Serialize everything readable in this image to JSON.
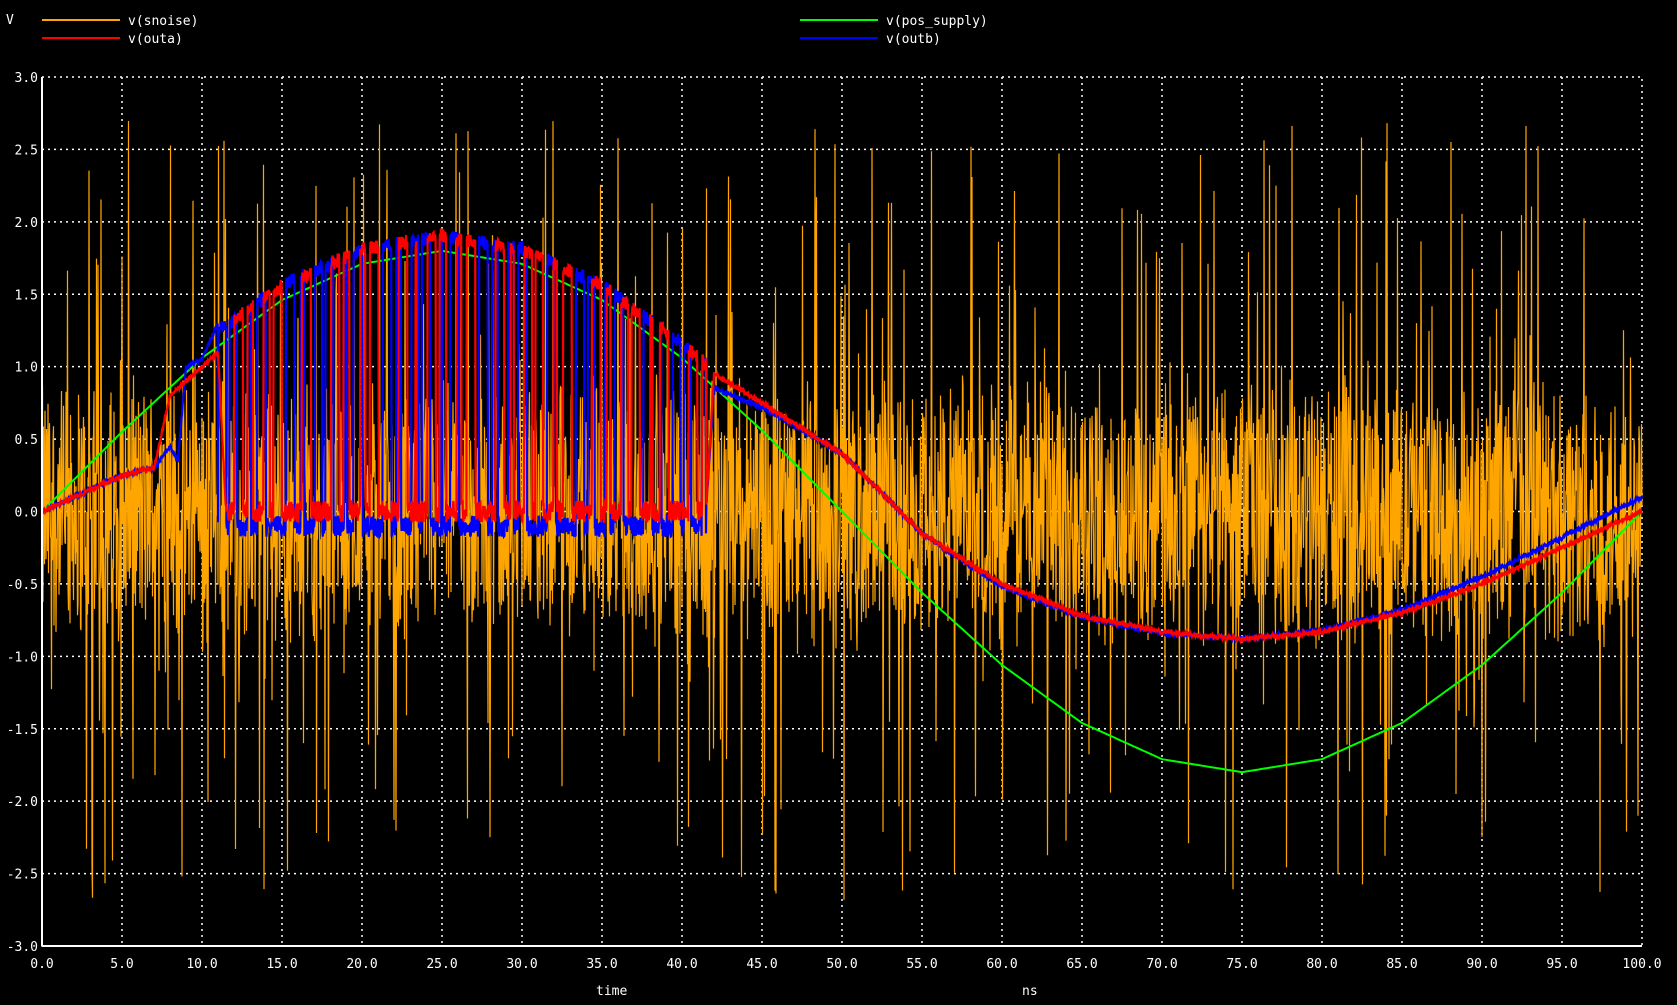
{
  "chart_data": {
    "type": "line",
    "y_unit": "V",
    "x_label": "time",
    "x_unit": "ns",
    "xlim": [
      0,
      100
    ],
    "ylim": [
      -3,
      3
    ],
    "x_ticks": [
      "0.0",
      "5.0",
      "10.0",
      "15.0",
      "20.0",
      "25.0",
      "30.0",
      "35.0",
      "40.0",
      "45.0",
      "50.0",
      "55.0",
      "60.0",
      "65.0",
      "70.0",
      "75.0",
      "80.0",
      "85.0",
      "90.0",
      "95.0",
      "100.0"
    ],
    "y_ticks": [
      "3.0",
      "2.5",
      "2.0",
      "1.5",
      "1.0",
      "0.5",
      "0.0",
      "-0.5",
      "-1.0",
      "-1.5",
      "-2.0",
      "-2.5",
      "-3.0"
    ],
    "grid": true,
    "legend_placement": "top",
    "series": [
      {
        "name": "v(snoise)",
        "color": "#ffa500",
        "description": "noisy signal, band approx +/-1.0, spikes to +/-2.7",
        "envelope_ns": [
          0,
          100
        ],
        "band": [
          -1.0,
          1.0
        ],
        "peak": [
          -2.7,
          2.7
        ]
      },
      {
        "name": "v(outa)",
        "color": "#ff0000",
        "x": [
          0,
          5,
          7,
          8,
          10,
          11,
          11.5,
          41.5,
          42,
          45,
          50,
          55,
          60,
          65,
          70,
          75,
          80,
          85,
          90,
          95,
          100
        ],
        "y": [
          0.0,
          0.25,
          0.3,
          0.8,
          1.0,
          1.1,
          0.0,
          0.0,
          0.95,
          0.75,
          0.4,
          -0.15,
          -0.5,
          -0.72,
          -0.83,
          -0.88,
          -0.83,
          -0.7,
          -0.5,
          -0.25,
          0.0
        ],
        "burst_ns": [
          11.5,
          41.5
        ],
        "burst_high": 1.95,
        "burst_low": 0.0
      },
      {
        "name": "v(pos_supply)",
        "color": "#00ff00",
        "x": [
          0,
          5,
          10,
          15,
          20,
          25,
          30,
          35,
          40,
          45,
          50,
          55,
          60,
          65,
          70,
          75,
          80,
          85,
          90,
          95,
          100
        ],
        "y": [
          0.0,
          0.55,
          1.06,
          1.46,
          1.71,
          1.8,
          1.71,
          1.46,
          1.06,
          0.56,
          0.0,
          -0.56,
          -1.06,
          -1.46,
          -1.71,
          -1.8,
          -1.71,
          -1.46,
          -1.06,
          -0.56,
          0.0
        ]
      },
      {
        "name": "v(outb)",
        "color": "#0000ff",
        "x": [
          0,
          5,
          7,
          8,
          8.5,
          9,
          10,
          11,
          41.5,
          42,
          45,
          50,
          55,
          60,
          65,
          70,
          75,
          80,
          85,
          90,
          95,
          100
        ],
        "y": [
          0.0,
          0.25,
          0.3,
          0.45,
          0.35,
          1.0,
          1.05,
          1.3,
          0.0,
          0.85,
          0.72,
          0.4,
          -0.15,
          -0.52,
          -0.73,
          -0.84,
          -0.88,
          -0.82,
          -0.68,
          -0.45,
          -0.18,
          0.1
        ],
        "burst_ns": [
          11,
          41.5
        ],
        "burst_high": 2.0,
        "burst_low": -0.1
      }
    ]
  }
}
